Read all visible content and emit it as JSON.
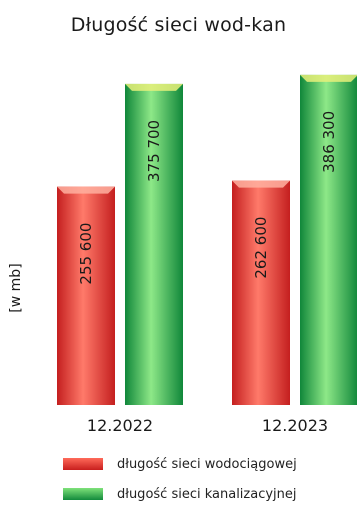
{
  "chart_data": {
    "type": "bar",
    "title": "Długość sieci wod-kan",
    "ylabel": "[w mb]",
    "xlabel": "",
    "categories": [
      "12.2022",
      "12.2023"
    ],
    "series": [
      {
        "name": "długość sieci wodociągowej",
        "values": [
          255600,
          262600
        ],
        "value_labels": [
          "255 600",
          "262 600"
        ],
        "color": "#e63a3a"
      },
      {
        "name": "długość sieci kanalizacyjnej",
        "values": [
          375700,
          386300
        ],
        "value_labels": [
          "375 700",
          "386 300"
        ],
        "color": "#1fa84e"
      }
    ],
    "legend_position": "bottom",
    "grid": false
  }
}
